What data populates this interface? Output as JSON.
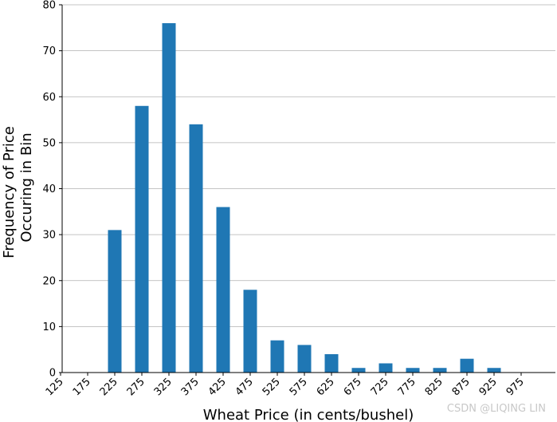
{
  "chart_data": {
    "type": "bar",
    "xlabel": "Wheat Price (in cents/bushel)",
    "ylabel": [
      "Frequency of Price",
      "Occuring in Bin"
    ],
    "categories": [
      "125",
      "175",
      "225",
      "275",
      "325",
      "375",
      "425",
      "475",
      "525",
      "575",
      "625",
      "675",
      "725",
      "775",
      "825",
      "875",
      "925",
      "975"
    ],
    "values": [
      0,
      0,
      31,
      58,
      76,
      54,
      36,
      18,
      7,
      6,
      4,
      1,
      2,
      1,
      1,
      3,
      1,
      0
    ],
    "color": "#1f77b4",
    "ylim": [
      0,
      80
    ],
    "yticks": [
      0,
      10,
      20,
      30,
      40,
      50,
      60,
      70,
      80
    ],
    "grid": true,
    "watermark": "CSDN @LIQING LIN"
  }
}
